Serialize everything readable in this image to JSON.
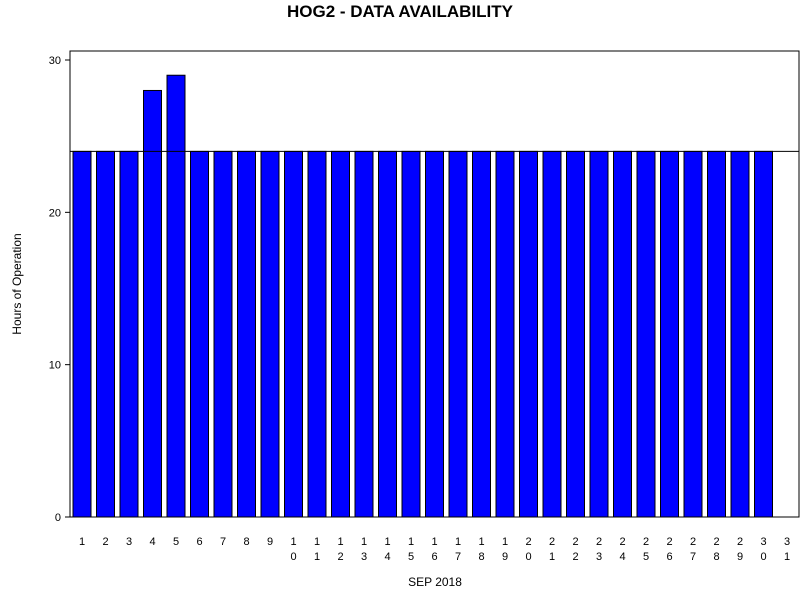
{
  "chart_data": {
    "type": "bar",
    "title": "HOG2 - DATA AVAILABILITY",
    "xlabel": "SEP 2018",
    "ylabel": "Hours of Operation",
    "ylim": [
      0,
      30
    ],
    "yticks": [
      0,
      10,
      20,
      30
    ],
    "reference_line": 24,
    "categories": [
      "1",
      "2",
      "3",
      "4",
      "5",
      "6",
      "7",
      "8",
      "9",
      "10",
      "11",
      "12",
      "13",
      "14",
      "15",
      "16",
      "17",
      "18",
      "19",
      "20",
      "21",
      "22",
      "23",
      "24",
      "25",
      "26",
      "27",
      "28",
      "29",
      "30",
      "31"
    ],
    "values": [
      24,
      24,
      24,
      28,
      29,
      24,
      24,
      24,
      24,
      24,
      24,
      24,
      24,
      24,
      24,
      24,
      24,
      24,
      24,
      24,
      24,
      24,
      24,
      24,
      24,
      24,
      24,
      24,
      24,
      24,
      null
    ],
    "bar_color": "#0000ff",
    "grid": false
  }
}
